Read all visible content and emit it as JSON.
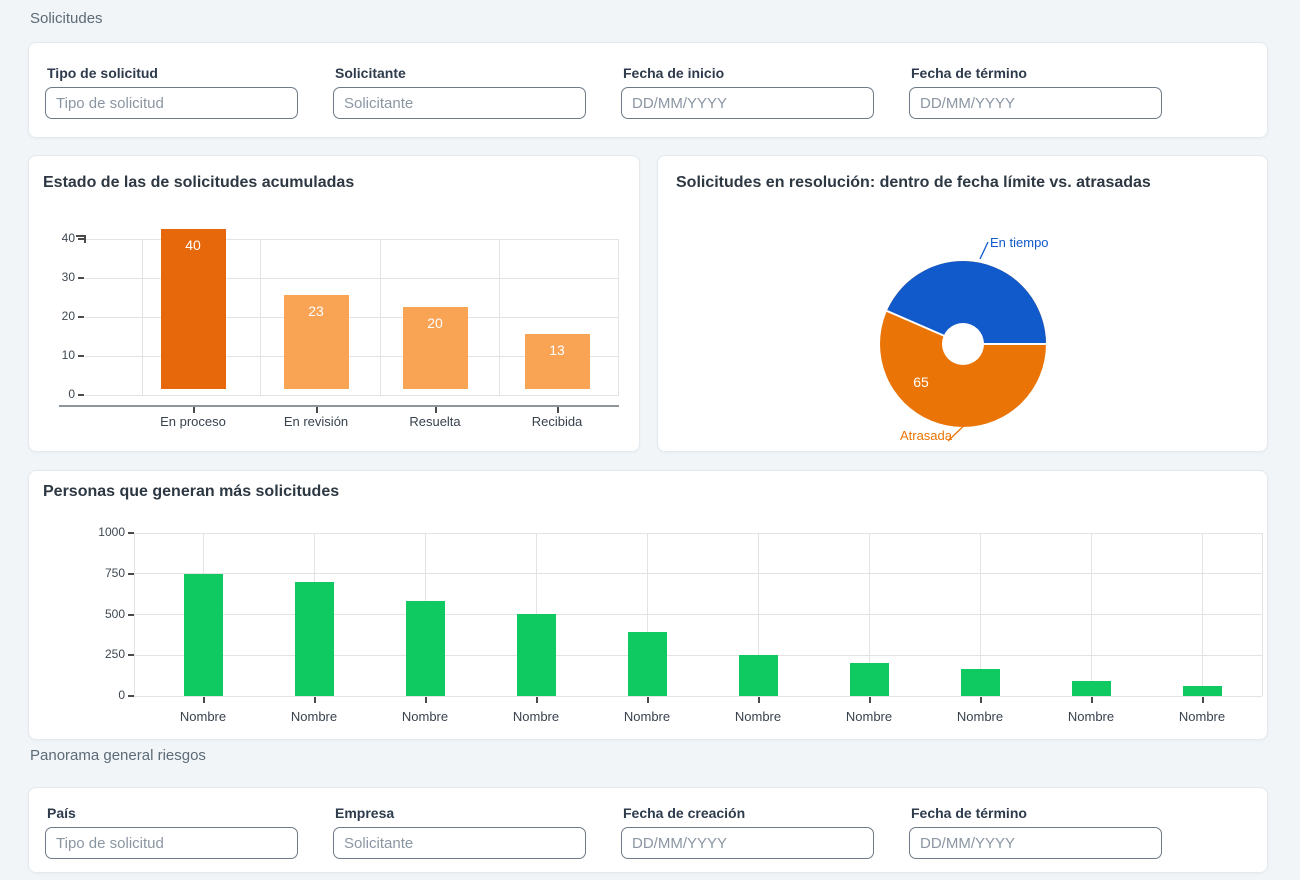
{
  "sections": [
    {
      "heading": "Solicitudes"
    },
    {
      "heading": "Panorama general riesgos"
    }
  ],
  "filters_top": {
    "fields": [
      {
        "label": "Tipo de solicitud",
        "placeholder": "Tipo de solicitud"
      },
      {
        "label": "Solicitante",
        "placeholder": "Solicitante"
      },
      {
        "label": "Fecha de inicio",
        "placeholder": "DD/MM/YYYY"
      },
      {
        "label": "Fecha de término",
        "placeholder": "DD/MM/YYYY"
      }
    ]
  },
  "filters_bottom": {
    "fields": [
      {
        "label": "País",
        "placeholder": "Tipo de solicitud"
      },
      {
        "label": "Empresa",
        "placeholder": "Solicitante"
      },
      {
        "label": "Fecha de creación",
        "placeholder": "DD/MM/YYYY"
      },
      {
        "label": "Fecha de término",
        "placeholder": "DD/MM/YYYY"
      }
    ]
  },
  "colors": {
    "background": "#f1f5f8",
    "card_border": "#e4e9ed",
    "orange_dark": "#e6680b",
    "orange_light": "#f9a355",
    "pie_orange": "#ea7506",
    "pie_blue": "#115acb",
    "green": "#0fca60"
  },
  "chart_data": [
    {
      "type": "bar",
      "title": "Estado de las de solicitudes acumuladas",
      "categories": [
        "En proceso",
        "En revisión",
        "Resuelta",
        "Recibida"
      ],
      "values": [
        40,
        23,
        20,
        13
      ],
      "bar_colors": [
        "#e6680b",
        "#f9a355",
        "#f9a355",
        "#f9a355"
      ],
      "yticks": [
        0,
        10,
        20,
        30,
        40
      ],
      "ylim": [
        0,
        40
      ],
      "grid": true,
      "data_labels": true,
      "legend": "none"
    },
    {
      "type": "pie",
      "title": "Solicitudes en resolución: dentro de fecha límite vs. atrasadas",
      "donut": true,
      "slices": [
        {
          "label": "En tiempo",
          "value": 50,
          "color": "#115acb",
          "value_label_visible": false
        },
        {
          "label": "Atrasada",
          "value": 65,
          "color": "#ea7506",
          "value_label_visible": true
        }
      ],
      "legend": "callout-labels"
    },
    {
      "type": "bar",
      "title": "Personas que generan más solicitudes",
      "categories": [
        "Nombre",
        "Nombre",
        "Nombre",
        "Nombre",
        "Nombre",
        "Nombre",
        "Nombre",
        "Nombre",
        "Nombre",
        "Nombre"
      ],
      "values": [
        750,
        700,
        585,
        505,
        390,
        250,
        205,
        165,
        90,
        60
      ],
      "bar_color": "#0fca60",
      "yticks": [
        0,
        250,
        500,
        750,
        1000
      ],
      "ylim": [
        0,
        1000
      ],
      "grid": true,
      "data_labels": false,
      "legend": "none"
    }
  ]
}
